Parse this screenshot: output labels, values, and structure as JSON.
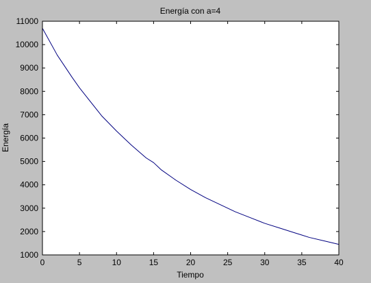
{
  "chart_data": {
    "type": "line",
    "title": "Energía con a=4",
    "xlabel": "Tiempo",
    "ylabel": "Energía",
    "xlim": [
      0,
      40
    ],
    "ylim": [
      1000,
      11000
    ],
    "xticks": [
      0,
      5,
      10,
      15,
      20,
      25,
      30,
      35,
      40
    ],
    "yticks": [
      1000,
      2000,
      3000,
      4000,
      5000,
      6000,
      7000,
      8000,
      9000,
      10000,
      11000
    ],
    "xtick_labels": [
      "0",
      "5",
      "10",
      "15",
      "20",
      "25",
      "30",
      "35",
      "40"
    ],
    "ytick_labels": [
      "1000",
      "2000",
      "3000",
      "4000",
      "5000",
      "6000",
      "7000",
      "8000",
      "9000",
      "10000",
      "11000"
    ],
    "grid": false,
    "series": [
      {
        "color": "#000080",
        "x": [
          0,
          2,
          4,
          5,
          6,
          8,
          10,
          12,
          14,
          15,
          16,
          18,
          20,
          22,
          24,
          25,
          26,
          28,
          30,
          32,
          34,
          35,
          36,
          38,
          40
        ],
        "y": [
          10700,
          9550,
          8600,
          8150,
          7750,
          6950,
          6300,
          5700,
          5150,
          4950,
          4650,
          4200,
          3800,
          3450,
          3150,
          3000,
          2850,
          2600,
          2350,
          2150,
          1950,
          1850,
          1750,
          1600,
          1450
        ]
      }
    ],
    "colors": {
      "figure_background": "#c0c0c0",
      "axes_background": "#ffffff",
      "line": "#000080",
      "axes": "#000000"
    }
  }
}
